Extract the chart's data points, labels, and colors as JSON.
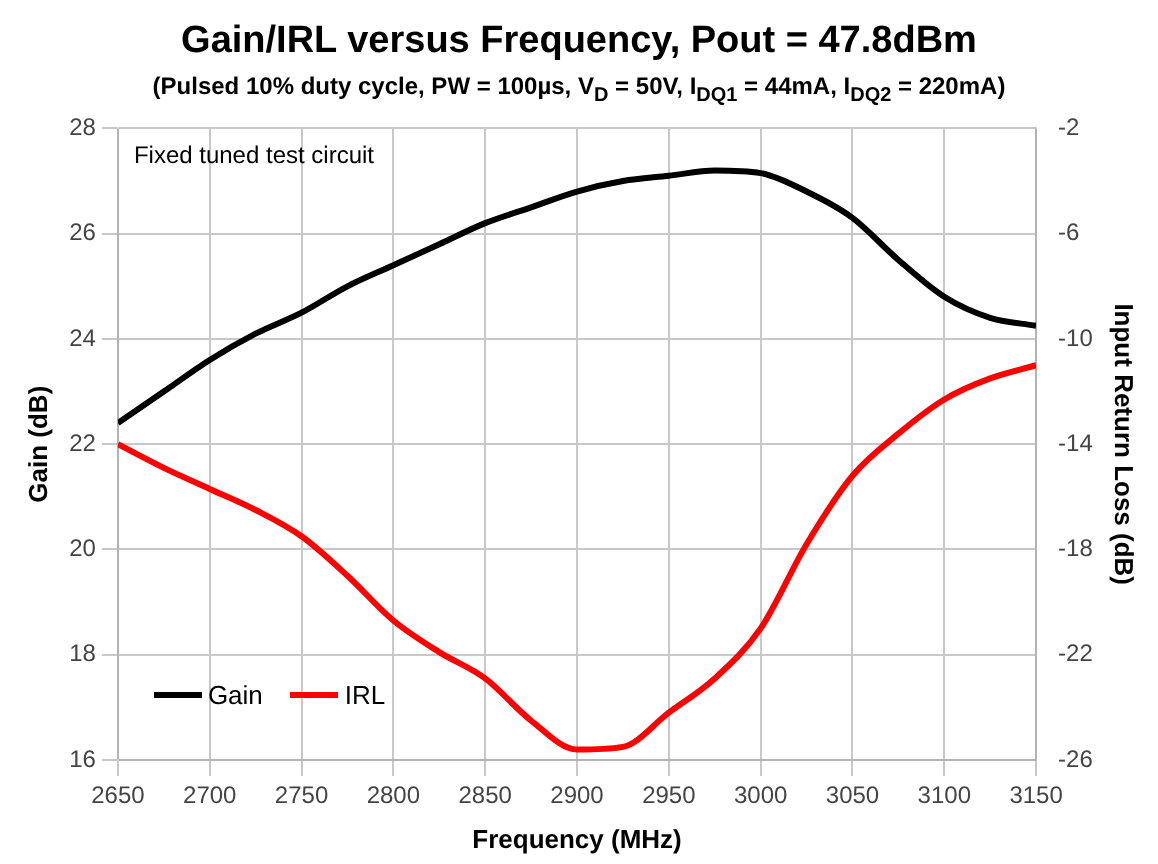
{
  "chart_data": {
    "type": "line",
    "title": "Gain/IRL versus Frequency, Pout = 47.8dBm",
    "subtitle": "(Pulsed 10% duty cycle, PW = 100µs, V$_{D}$ = 50V, I$_{DQ1}$ = 44mA, I$_{DQ2}$ = 220mA)",
    "xlabel": "Frequency (MHz)",
    "ylabel": "Gain (dB)",
    "y2label": "Input Return Loss (dB)",
    "annotations": [
      "Fixed tuned test circuit"
    ],
    "x": [
      2650,
      2675,
      2700,
      2725,
      2750,
      2775,
      2800,
      2825,
      2850,
      2875,
      2900,
      2925,
      2950,
      2975,
      3000,
      3025,
      3050,
      3075,
      3100,
      3125,
      3150
    ],
    "series": [
      {
        "name": "Gain",
        "color": "#000000",
        "values": [
          22.4,
          23.0,
          23.6,
          24.1,
          24.5,
          25.0,
          25.4,
          25.8,
          26.2,
          26.5,
          26.8,
          27.0,
          27.1,
          27.2,
          27.15,
          26.8,
          26.3,
          25.5,
          24.8,
          24.4,
          24.25
        ]
      },
      {
        "name": "IRL",
        "color": "#ff0000",
        "axis": "y2",
        "values": [
          -14.0,
          -14.9,
          -15.7,
          -16.5,
          -17.5,
          -19.0,
          -20.7,
          -21.9,
          -22.9,
          -24.5,
          -25.6,
          -25.5,
          -24.2,
          -22.9,
          -21.0,
          -17.8,
          -15.2,
          -13.6,
          -12.3,
          -11.5,
          -11.0
        ]
      }
    ],
    "xlim": [
      2650,
      3150
    ],
    "xticks": [
      2650,
      2700,
      2750,
      2800,
      2850,
      2900,
      2950,
      3000,
      3050,
      3100,
      3150
    ],
    "ylim": [
      16,
      28
    ],
    "yticks": [
      16,
      18,
      20,
      22,
      24,
      26,
      28
    ],
    "y2lim": [
      -26,
      -2
    ],
    "y2ticks": [
      -26,
      -22,
      -18,
      -14,
      -10,
      -6,
      -2
    ],
    "grid": true,
    "legend": "bottom left",
    "marker": "none",
    "line_style": "solid"
  }
}
